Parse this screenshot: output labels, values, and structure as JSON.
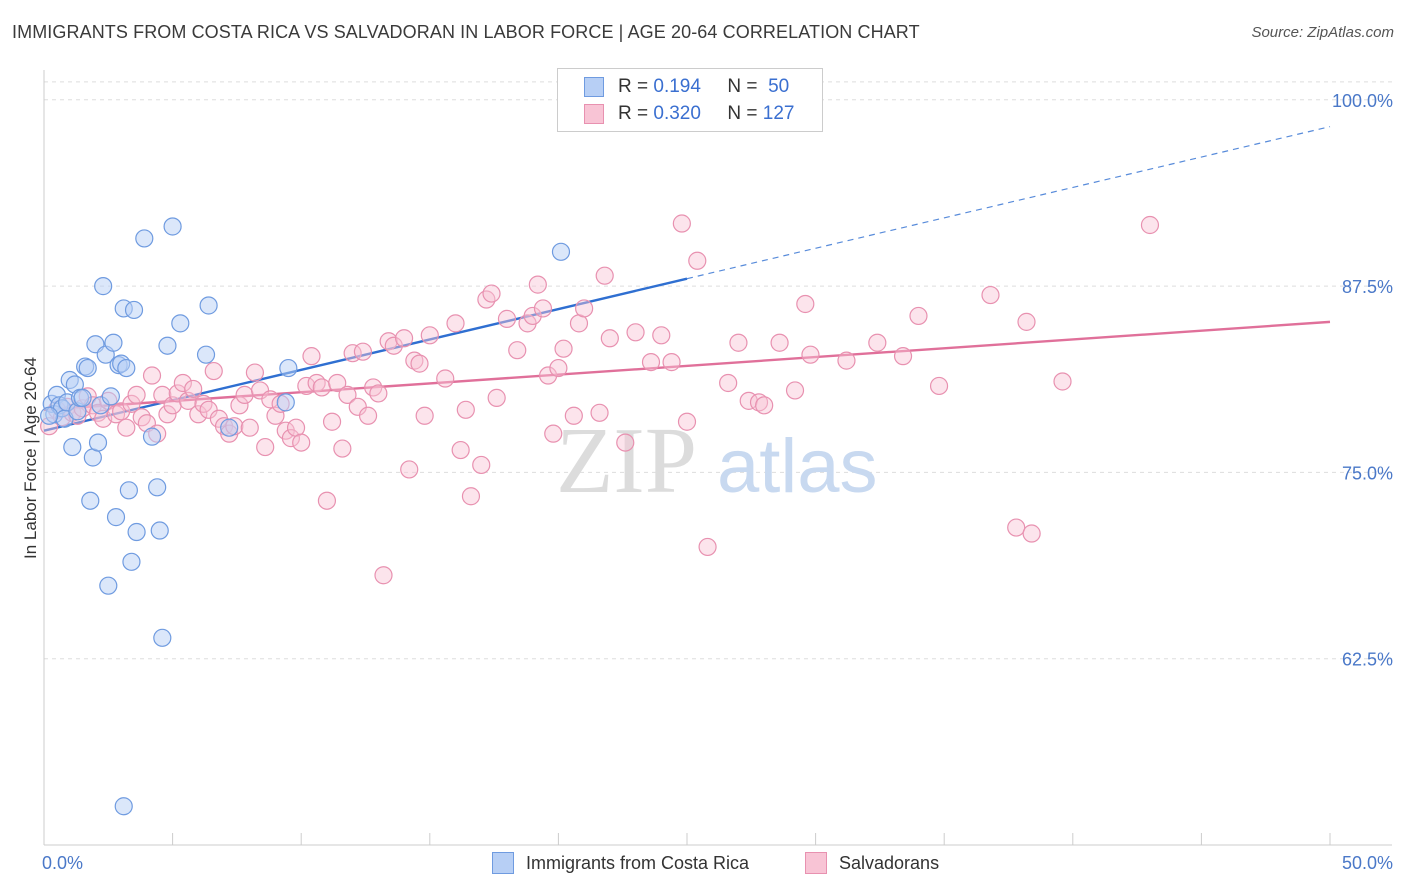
{
  "header": {
    "title": "IMMIGRANTS FROM COSTA RICA VS SALVADORAN IN LABOR FORCE | AGE 20-64 CORRELATION CHART",
    "source": "Source: ZipAtlas.com"
  },
  "legend": {
    "rows": [
      {
        "r_label": "R =",
        "r_value": "0.194",
        "n_label": "N =",
        "n_value": "50"
      },
      {
        "r_label": "R =",
        "r_value": "0.320",
        "n_label": "N =",
        "n_value": "127"
      }
    ]
  },
  "watermark": {
    "zip": "ZIP",
    "atlas": "atlas"
  },
  "colors": {
    "blue_fill": "#b7cff5",
    "blue_stroke": "#6f9be0",
    "blue_line": "#2f6fd1",
    "pink_fill": "#f8c4d5",
    "pink_stroke": "#e891b0",
    "pink_line": "#e0709a",
    "grid": "#dddddd",
    "tick_label": "#4a78c8"
  },
  "chart_data": {
    "type": "scatter",
    "title": "IMMIGRANTS FROM COSTA RICA VS SALVADORAN IN LABOR FORCE | AGE 20-64 CORRELATION CHART",
    "xlabel": "",
    "ylabel": "In Labor Force | Age 20-64",
    "xlim": [
      0,
      50
    ],
    "ylim": [
      50,
      102
    ],
    "x_tick_labels": [
      "0.0%",
      "50.0%"
    ],
    "y_ticks": [
      62.5,
      75.0,
      87.5,
      100.0
    ],
    "y_tick_labels": [
      "62.5%",
      "75.0%",
      "87.5%",
      "100.0%"
    ],
    "grid": true,
    "legend_position": "top-center",
    "series": [
      {
        "name": "Immigrants from Costa Rica",
        "r": 0.194,
        "n": 50,
        "trend": {
          "x0": 0,
          "y0": 77.8,
          "x1": 25,
          "y1": 88.0,
          "dashed_to_x": 50,
          "dashed_to_y": 98.2
        },
        "points": [
          [
            0.3,
            79.6
          ],
          [
            0.4,
            78.9
          ],
          [
            0.5,
            80.2
          ],
          [
            0.6,
            79.5
          ],
          [
            0.7,
            79.3
          ],
          [
            0.8,
            78.6
          ],
          [
            0.9,
            79.7
          ],
          [
            1.0,
            81.2
          ],
          [
            1.1,
            76.7
          ],
          [
            1.2,
            80.9
          ],
          [
            1.3,
            79.1
          ],
          [
            1.4,
            80.0
          ],
          [
            1.5,
            80.0
          ],
          [
            1.6,
            82.1
          ],
          [
            1.7,
            82.0
          ],
          [
            1.8,
            73.1
          ],
          [
            1.9,
            76.0
          ],
          [
            2.0,
            83.6
          ],
          [
            2.1,
            77.0
          ],
          [
            2.2,
            79.5
          ],
          [
            2.3,
            87.5
          ],
          [
            2.4,
            82.9
          ],
          [
            2.5,
            67.4
          ],
          [
            2.6,
            80.1
          ],
          [
            2.7,
            83.7
          ],
          [
            2.8,
            72.0
          ],
          [
            2.9,
            82.2
          ],
          [
            3.0,
            82.3
          ],
          [
            3.1,
            86.0
          ],
          [
            3.2,
            82.0
          ],
          [
            3.3,
            73.8
          ],
          [
            3.4,
            69.0
          ],
          [
            3.5,
            85.9
          ],
          [
            3.6,
            71.0
          ],
          [
            3.9,
            90.7
          ],
          [
            4.2,
            77.4
          ],
          [
            4.4,
            74.0
          ],
          [
            4.5,
            71.1
          ],
          [
            4.6,
            63.9
          ],
          [
            4.8,
            83.5
          ],
          [
            5.0,
            91.5
          ],
          [
            5.3,
            85.0
          ],
          [
            6.3,
            82.9
          ],
          [
            6.4,
            86.2
          ],
          [
            7.2,
            78.0
          ],
          [
            9.5,
            82.0
          ],
          [
            9.4,
            79.7
          ],
          [
            20.1,
            89.8
          ],
          [
            3.1,
            52.6
          ],
          [
            0.2,
            78.8
          ]
        ]
      },
      {
        "name": "Salvadorans",
        "r": 0.32,
        "n": 127,
        "trend": {
          "x0": 0,
          "y0": 79.2,
          "x1": 50,
          "y1": 85.1
        },
        "points": [
          [
            0.2,
            78.1
          ],
          [
            0.5,
            79.2
          ],
          [
            0.7,
            78.7
          ],
          [
            0.9,
            79.4
          ],
          [
            1.1,
            79.0
          ],
          [
            1.3,
            78.8
          ],
          [
            1.5,
            79.3
          ],
          [
            1.7,
            80.1
          ],
          [
            1.9,
            79.5
          ],
          [
            2.1,
            79.0
          ],
          [
            2.3,
            78.6
          ],
          [
            2.5,
            79.8
          ],
          [
            2.8,
            78.9
          ],
          [
            3.0,
            79.1
          ],
          [
            3.2,
            78.0
          ],
          [
            3.4,
            79.6
          ],
          [
            3.6,
            80.2
          ],
          [
            3.8,
            78.7
          ],
          [
            4.0,
            78.3
          ],
          [
            4.2,
            81.5
          ],
          [
            4.4,
            77.6
          ],
          [
            4.6,
            80.2
          ],
          [
            4.8,
            78.9
          ],
          [
            5.0,
            79.5
          ],
          [
            5.2,
            80.3
          ],
          [
            5.4,
            81.0
          ],
          [
            5.6,
            79.8
          ],
          [
            5.8,
            80.6
          ],
          [
            6.0,
            78.9
          ],
          [
            6.2,
            79.6
          ],
          [
            6.4,
            79.2
          ],
          [
            6.6,
            81.8
          ],
          [
            6.8,
            78.6
          ],
          [
            7.0,
            78.1
          ],
          [
            7.2,
            77.6
          ],
          [
            7.4,
            78.1
          ],
          [
            7.6,
            79.5
          ],
          [
            7.8,
            80.2
          ],
          [
            8.0,
            78.0
          ],
          [
            8.2,
            81.7
          ],
          [
            8.4,
            80.5
          ],
          [
            8.6,
            76.7
          ],
          [
            8.8,
            79.9
          ],
          [
            9.0,
            78.8
          ],
          [
            9.2,
            79.6
          ],
          [
            9.4,
            77.8
          ],
          [
            9.6,
            77.3
          ],
          [
            9.8,
            78.0
          ],
          [
            10.0,
            77.0
          ],
          [
            10.2,
            80.8
          ],
          [
            10.4,
            82.8
          ],
          [
            10.6,
            81.0
          ],
          [
            10.8,
            80.7
          ],
          [
            11.0,
            73.1
          ],
          [
            11.2,
            78.4
          ],
          [
            11.4,
            81.0
          ],
          [
            11.6,
            76.6
          ],
          [
            11.8,
            80.2
          ],
          [
            12.0,
            83.0
          ],
          [
            12.2,
            79.4
          ],
          [
            12.4,
            83.1
          ],
          [
            12.6,
            78.8
          ],
          [
            12.8,
            80.7
          ],
          [
            13.0,
            80.3
          ],
          [
            13.2,
            68.1
          ],
          [
            13.4,
            83.8
          ],
          [
            13.6,
            83.5
          ],
          [
            14.0,
            84.0
          ],
          [
            14.2,
            75.2
          ],
          [
            14.4,
            82.5
          ],
          [
            14.6,
            82.3
          ],
          [
            14.8,
            78.8
          ],
          [
            15.0,
            84.2
          ],
          [
            15.6,
            81.3
          ],
          [
            16.0,
            85.0
          ],
          [
            16.2,
            76.5
          ],
          [
            16.4,
            79.2
          ],
          [
            16.6,
            73.4
          ],
          [
            17.0,
            75.5
          ],
          [
            17.2,
            86.6
          ],
          [
            17.4,
            87.0
          ],
          [
            17.6,
            80.0
          ],
          [
            18.0,
            85.3
          ],
          [
            18.4,
            83.2
          ],
          [
            18.8,
            85.0
          ],
          [
            19.0,
            85.5
          ],
          [
            19.2,
            87.6
          ],
          [
            19.4,
            86.0
          ],
          [
            19.6,
            81.5
          ],
          [
            19.8,
            77.6
          ],
          [
            20.0,
            82.0
          ],
          [
            20.2,
            83.3
          ],
          [
            20.6,
            78.8
          ],
          [
            20.8,
            85.0
          ],
          [
            21.0,
            86.0
          ],
          [
            21.6,
            79.0
          ],
          [
            21.8,
            88.2
          ],
          [
            22.0,
            84.0
          ],
          [
            22.6,
            77.0
          ],
          [
            23.0,
            84.4
          ],
          [
            23.6,
            82.4
          ],
          [
            24.0,
            84.2
          ],
          [
            24.4,
            82.4
          ],
          [
            24.8,
            91.7
          ],
          [
            25.0,
            78.4
          ],
          [
            25.4,
            89.2
          ],
          [
            25.8,
            70.0
          ],
          [
            26.6,
            81.0
          ],
          [
            27.0,
            83.7
          ],
          [
            27.4,
            79.8
          ],
          [
            27.8,
            79.7
          ],
          [
            28.0,
            79.5
          ],
          [
            28.6,
            83.7
          ],
          [
            29.2,
            80.5
          ],
          [
            29.6,
            86.3
          ],
          [
            29.8,
            82.9
          ],
          [
            31.2,
            82.5
          ],
          [
            32.4,
            83.7
          ],
          [
            33.4,
            82.8
          ],
          [
            34.0,
            85.5
          ],
          [
            34.8,
            80.8
          ],
          [
            36.8,
            86.9
          ],
          [
            37.8,
            71.3
          ],
          [
            38.2,
            85.1
          ],
          [
            38.4,
            70.9
          ],
          [
            39.6,
            81.1
          ],
          [
            43.0,
            91.6
          ]
        ]
      }
    ]
  }
}
